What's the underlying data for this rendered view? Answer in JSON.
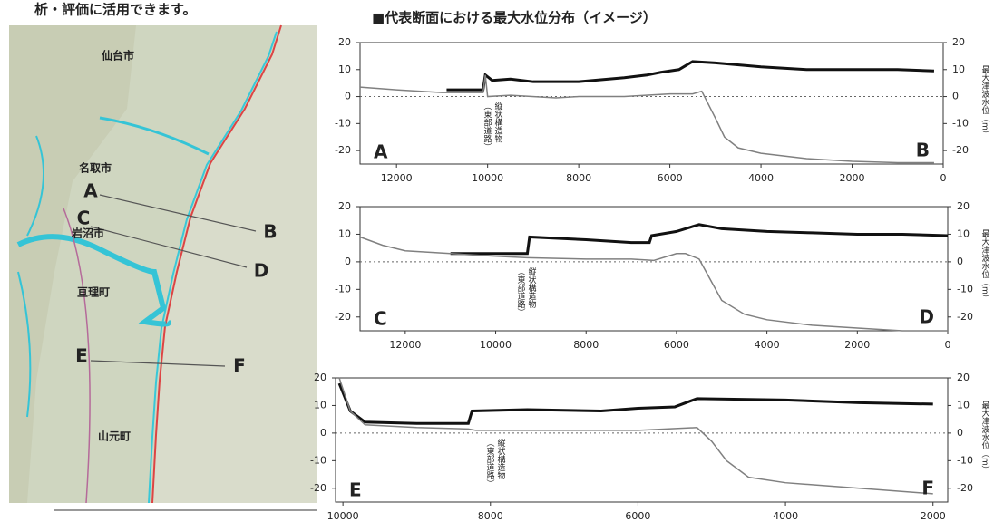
{
  "header": {
    "note": "析・評価に活用できます。",
    "title": "■代表断面における最大水位分布（イメージ）"
  },
  "map": {
    "labels": [
      "仙台市",
      "名取市",
      "A",
      "B",
      "C",
      "岩沼市",
      "D",
      "亘理町",
      "E",
      "F",
      "山元町"
    ]
  },
  "chart_data": [
    {
      "type": "line",
      "corner_labels": [
        "A",
        "B"
      ],
      "annotation": [
        "縦状構造物",
        "（東部道路）"
      ],
      "y2_label": "最大津波水位（m）",
      "xlim": [
        12800,
        0
      ],
      "xticks": [
        12000,
        10000,
        8000,
        6000,
        4000,
        2000,
        0
      ],
      "ylim": [
        -25,
        20
      ],
      "yticks": [
        20,
        10,
        0,
        -10,
        -20
      ],
      "y2lim": [
        -25,
        20
      ],
      "y2ticks": [
        20,
        10,
        0,
        -10,
        -20
      ],
      "reference_line": 0,
      "series": [
        {
          "color": "#111111",
          "x": [
            10900,
            10100,
            10050,
            9900,
            9500,
            9000,
            8000,
            7000,
            6500,
            6200,
            5800,
            5500,
            5000,
            4000,
            3000,
            2000,
            1000,
            200
          ],
          "values": [
            2.5,
            2.5,
            8,
            6,
            6.5,
            5.5,
            5.5,
            7,
            8,
            9,
            10,
            13,
            12.5,
            11,
            10,
            10,
            10,
            9.5
          ]
        },
        {
          "color": "#808080",
          "x": [
            12800,
            12000,
            11000,
            10100,
            10050,
            10000,
            9500,
            8500,
            8000,
            7000,
            6000,
            5500,
            5300,
            5000,
            4800,
            4500,
            4000,
            3000,
            2000,
            1000,
            200
          ],
          "values": [
            3.5,
            2.5,
            1.5,
            1.5,
            8,
            0,
            0.5,
            -0.5,
            0,
            0,
            1,
            1,
            2,
            -8,
            -15,
            -19,
            -21,
            -23,
            -24,
            -24.5,
            -24.5
          ]
        }
      ]
    },
    {
      "type": "line",
      "corner_labels": [
        "C",
        "D"
      ],
      "annotation": [
        "縦状構造物",
        "（東部道路）"
      ],
      "y2_label": "最大津波水位（m）",
      "xlim": [
        13000,
        0
      ],
      "xticks": [
        12000,
        10000,
        8000,
        6000,
        4000,
        2000,
        0
      ],
      "ylim": [
        -25,
        20
      ],
      "yticks": [
        20,
        10,
        0,
        -10,
        -20
      ],
      "y2lim": [
        -25,
        20
      ],
      "y2ticks": [
        20,
        10,
        0,
        -10,
        -20
      ],
      "reference_line": 0,
      "series": [
        {
          "color": "#111111",
          "x": [
            11000,
            9300,
            9250,
            8000,
            7000,
            6600,
            6550,
            6000,
            5500,
            5000,
            4000,
            3000,
            2000,
            1000,
            0
          ],
          "values": [
            3,
            3,
            9,
            8,
            7,
            7,
            9.5,
            11,
            13.5,
            12,
            11,
            10.5,
            10,
            10,
            9.5
          ]
        },
        {
          "color": "#808080",
          "x": [
            13000,
            12500,
            12000,
            11000,
            10000,
            9300,
            8000,
            7000,
            6500,
            6000,
            5800,
            5500,
            5200,
            5000,
            4500,
            4000,
            3000,
            2000,
            1000,
            0
          ],
          "values": [
            9,
            6,
            4,
            3,
            2,
            1.5,
            1,
            1,
            0.5,
            3,
            3,
            1,
            -8,
            -14,
            -19,
            -21,
            -23,
            -24,
            -25,
            -25
          ]
        }
      ]
    },
    {
      "type": "line",
      "corner_labels": [
        "E",
        "F"
      ],
      "annotation": [
        "縦状構造物",
        "（東部道路）"
      ],
      "y2_label": "最大津波水位（m）",
      "xlim": [
        10100,
        1800
      ],
      "xticks": [
        10000,
        8000,
        6000,
        4000,
        2000
      ],
      "ylim": [
        -25,
        20
      ],
      "yticks": [
        20,
        10,
        0,
        -10,
        -20
      ],
      "y2lim": [
        -25,
        20
      ],
      "y2ticks": [
        20,
        10,
        0,
        -10,
        -20
      ],
      "reference_line": 0,
      "series": [
        {
          "color": "#111111",
          "x": [
            10050,
            9900,
            9700,
            9000,
            8300,
            8250,
            7500,
            6500,
            6000,
            5500,
            5200,
            4000,
            3000,
            2000
          ],
          "values": [
            18,
            8,
            4,
            3.5,
            3.5,
            8,
            8.5,
            8,
            9,
            9.5,
            12.5,
            12,
            11,
            10.5
          ]
        },
        {
          "color": "#808080",
          "x": [
            10050,
            9900,
            9700,
            9000,
            8300,
            8200,
            7000,
            6000,
            5200,
            5000,
            4800,
            4500,
            4000,
            3000,
            2000
          ],
          "values": [
            20,
            8,
            3,
            2,
            1.5,
            1,
            1,
            1,
            2,
            -3,
            -10,
            -16,
            -18,
            -20,
            -22
          ]
        }
      ]
    }
  ]
}
